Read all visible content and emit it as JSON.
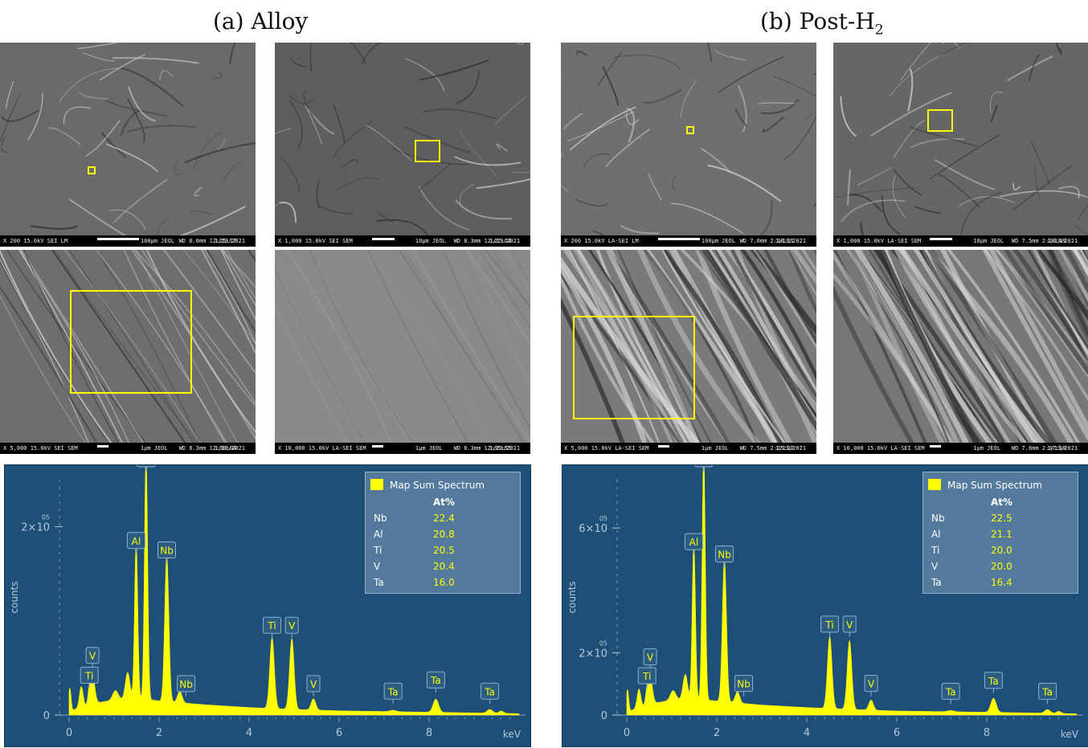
{
  "panels": [
    {
      "title": "(a) Alloy",
      "images": [
        {
          "info": "X 200 15.0kV SEI LM",
          "scale": "100µm JEOL",
          "meta": "WD 8.0mm 12:25:17",
          "date": "1/13/2021"
        },
        {
          "info": "X 1,000 15.0kV SEI SEM",
          "scale": "10µm JEOL",
          "meta": "WD 8.3mm 12:27:14",
          "date": "1/13/2021"
        },
        {
          "info": "X 5,000 15.0kV SEI SEM",
          "scale": "1µm JEOL",
          "meta": "WD 8.3mm 12:30:04",
          "date": "1/13/2021"
        },
        {
          "info": "X 10,000 15.0kV LA-SEI SEM",
          "scale": "1µm JEOL",
          "meta": "WD 8.3mm 12:35:55",
          "date": "1/13/2021"
        }
      ]
    },
    {
      "title_main": "(b) Post-H",
      "title_sub": "2",
      "images": [
        {
          "info": "X 200 15.0kV LA-SEI LM",
          "scale": "100µm JEOL",
          "meta": "WD 7.0mm 2:18:21",
          "date": "1/13/2021"
        },
        {
          "info": "X 1,000 15.0kV LA-SEI SEM",
          "scale": "10µm JEOL",
          "meta": "WD 7.5mm 2:20:49",
          "date": "1/13/2021"
        },
        {
          "info": "X 5,000 15.0kV LA-SEI SEM",
          "scale": "1µm JEOL",
          "meta": "WD 7.5mm 2:25:22",
          "date": "1/13/2021"
        },
        {
          "info": "X 10,000 15.0kV LA-SEI SEM",
          "scale": "1µm JEOL",
          "meta": "WD 7.6mm 2:37:10",
          "date": "1/13/2021"
        }
      ]
    }
  ],
  "colors": {
    "spectrum_bg": "#1d4f78",
    "peak": "#ffff00",
    "box": "#ffff00"
  },
  "chart_data": [
    {
      "type": "area",
      "xlabel": "keV",
      "ylabel": "counts",
      "xlim": [
        0,
        10
      ],
      "xticks": [
        0,
        2,
        4,
        6,
        8
      ],
      "y_scale_max": 250000,
      "yticks": [
        {
          "value": 0,
          "label": "0"
        },
        {
          "value": 200000,
          "label": "2×10",
          "exp": "05"
        }
      ],
      "legend": {
        "title": "Map Sum Spectrum",
        "column": "At%",
        "rows": [
          {
            "el": "Nb",
            "v": "22.4"
          },
          {
            "el": "Al",
            "v": "20.8"
          },
          {
            "el": "Ti",
            "v": "20.5"
          },
          {
            "el": "V",
            "v": "20.4"
          },
          {
            "el": "Ta",
            "v": "16.0"
          }
        ]
      },
      "series": [
        {
          "name": "Map Sum Spectrum",
          "background": [
            [
              0,
              4000
            ],
            [
              0.5,
              12000
            ],
            [
              1,
              16000
            ],
            [
              1.5,
              18000
            ],
            [
              2,
              15000
            ],
            [
              3,
              11000
            ],
            [
              4,
              8000
            ],
            [
              5,
              6000
            ],
            [
              6,
              4500
            ],
            [
              8,
              3000
            ],
            [
              10,
              1500
            ]
          ],
          "peaks": [
            {
              "x": 0.0,
              "y": 45000,
              "w": 0.03
            },
            {
              "x": 0.27,
              "y": 22000,
              "w": 0.04
            },
            {
              "x": 0.45,
              "y": 12000,
              "w": 0.03
            },
            {
              "x": 0.52,
              "y": 30000,
              "w": 0.05
            },
            {
              "x": 1.03,
              "y": 10000,
              "w": 0.06
            },
            {
              "x": 1.3,
              "y": 28000,
              "w": 0.05
            },
            {
              "x": 1.49,
              "y": 165000,
              "w": 0.035
            },
            {
              "x": 1.71,
              "y": 260000,
              "w": 0.035
            },
            {
              "x": 2.17,
              "y": 155000,
              "w": 0.045
            },
            {
              "x": 2.46,
              "y": 12000,
              "w": 0.05
            },
            {
              "x": 4.51,
              "y": 75000,
              "w": 0.05
            },
            {
              "x": 4.95,
              "y": 75000,
              "w": 0.05
            },
            {
              "x": 5.43,
              "y": 12000,
              "w": 0.05
            },
            {
              "x": 7.2,
              "y": 1500,
              "w": 0.07
            },
            {
              "x": 8.15,
              "y": 14000,
              "w": 0.06
            },
            {
              "x": 9.35,
              "y": 4000,
              "w": 0.06
            },
            {
              "x": 9.6,
              "y": 2500,
              "w": 0.05
            }
          ]
        }
      ],
      "labels": [
        {
          "text": "Ta",
          "x": 1.71,
          "y": 265000
        },
        {
          "text": "Al",
          "x": 1.49,
          "y": 170000
        },
        {
          "text": "Nb",
          "x": 2.17,
          "y": 160000
        },
        {
          "text": "Ti",
          "x": 4.51,
          "y": 80000
        },
        {
          "text": "V",
          "x": 4.95,
          "y": 80000
        },
        {
          "text": "V",
          "x": 0.52,
          "y": 48000
        },
        {
          "text": "Ti",
          "x": 0.45,
          "y": 27000
        },
        {
          "text": "Nb",
          "x": 2.6,
          "y": 18000
        },
        {
          "text": "V",
          "x": 5.43,
          "y": 18000
        },
        {
          "text": "Ta",
          "x": 7.2,
          "y": 10000
        },
        {
          "text": "Ta",
          "x": 8.15,
          "y": 22000
        },
        {
          "text": "Ta",
          "x": 9.35,
          "y": 10000
        }
      ]
    },
    {
      "type": "area",
      "xlabel": "keV",
      "ylabel": "counts",
      "xlim": [
        0,
        10
      ],
      "xticks": [
        0,
        2,
        4,
        6,
        8
      ],
      "y_scale_max": 755000,
      "yticks": [
        {
          "value": 0,
          "label": "0"
        },
        {
          "value": 200000,
          "label": "2×10",
          "exp": "05"
        },
        {
          "value": 600000,
          "label": "6×10",
          "exp": "05"
        }
      ],
      "legend": {
        "title": "Map Sum Spectrum",
        "column": "At%",
        "rows": [
          {
            "el": "Nb",
            "v": "22.5"
          },
          {
            "el": "Al",
            "v": "21.1"
          },
          {
            "el": "Ti",
            "v": "20.0"
          },
          {
            "el": "V",
            "v": "20.0"
          },
          {
            "el": "Ta",
            "v": "16.4"
          }
        ]
      },
      "series": [
        {
          "name": "Map Sum Spectrum",
          "background": [
            [
              0,
              10000
            ],
            [
              0.5,
              35000
            ],
            [
              1,
              48000
            ],
            [
              1.5,
              52000
            ],
            [
              2,
              45000
            ],
            [
              3,
              32000
            ],
            [
              4,
              24000
            ],
            [
              5,
              18000
            ],
            [
              6,
              13000
            ],
            [
              8,
              9000
            ],
            [
              10,
              4000
            ]
          ],
          "peaks": [
            {
              "x": 0.0,
              "y": 130000,
              "w": 0.03
            },
            {
              "x": 0.27,
              "y": 60000,
              "w": 0.04
            },
            {
              "x": 0.45,
              "y": 35000,
              "w": 0.03
            },
            {
              "x": 0.52,
              "y": 85000,
              "w": 0.05
            },
            {
              "x": 1.03,
              "y": 30000,
              "w": 0.06
            },
            {
              "x": 1.3,
              "y": 80000,
              "w": 0.05
            },
            {
              "x": 1.49,
              "y": 500000,
              "w": 0.035
            },
            {
              "x": 1.71,
              "y": 790000,
              "w": 0.035
            },
            {
              "x": 2.17,
              "y": 455000,
              "w": 0.045
            },
            {
              "x": 2.46,
              "y": 35000,
              "w": 0.05
            },
            {
              "x": 4.51,
              "y": 230000,
              "w": 0.05
            },
            {
              "x": 4.95,
              "y": 220000,
              "w": 0.05
            },
            {
              "x": 5.43,
              "y": 32000,
              "w": 0.05
            },
            {
              "x": 7.2,
              "y": 4000,
              "w": 0.07
            },
            {
              "x": 8.15,
              "y": 45000,
              "w": 0.06
            },
            {
              "x": 9.35,
              "y": 12000,
              "w": 0.06
            },
            {
              "x": 9.6,
              "y": 7000,
              "w": 0.05
            }
          ]
        }
      ],
      "labels": [
        {
          "text": "Ta",
          "x": 1.71,
          "y": 800000
        },
        {
          "text": "Al",
          "x": 1.49,
          "y": 510000
        },
        {
          "text": "Nb",
          "x": 2.17,
          "y": 470000
        },
        {
          "text": "Ti",
          "x": 4.51,
          "y": 245000
        },
        {
          "text": "V",
          "x": 4.95,
          "y": 245000
        },
        {
          "text": "V",
          "x": 0.52,
          "y": 140000
        },
        {
          "text": "Ti",
          "x": 0.45,
          "y": 80000
        },
        {
          "text": "Nb",
          "x": 2.6,
          "y": 55000
        },
        {
          "text": "V",
          "x": 5.43,
          "y": 55000
        },
        {
          "text": "Ta",
          "x": 7.2,
          "y": 30000
        },
        {
          "text": "Ta",
          "x": 8.15,
          "y": 65000
        },
        {
          "text": "Ta",
          "x": 9.35,
          "y": 30000
        }
      ]
    }
  ]
}
